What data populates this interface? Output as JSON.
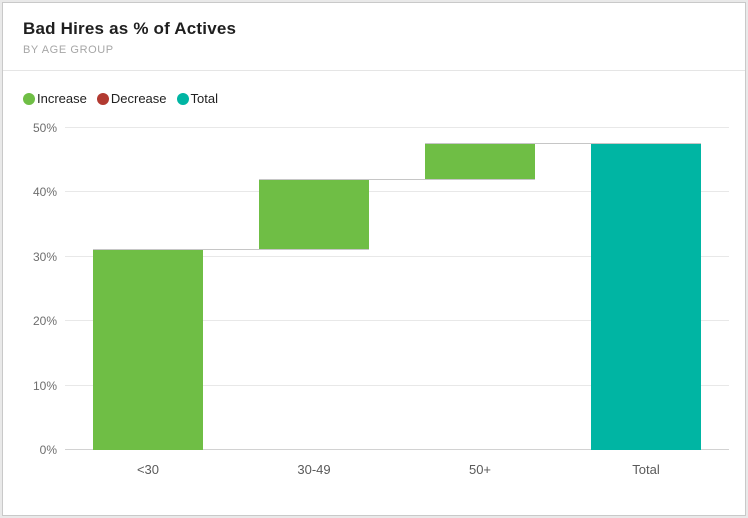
{
  "header": {
    "title": "Bad Hires as % of Actives",
    "subtitle": "BY AGE GROUP"
  },
  "chart_data": {
    "type": "waterfall",
    "title": "Bad Hires as % of Actives",
    "subtitle": "BY AGE GROUP",
    "categories": [
      "<30",
      "30-49",
      "50+",
      "Total"
    ],
    "bars": [
      {
        "category": "<30",
        "start": 0,
        "end": 31,
        "role": "increase"
      },
      {
        "category": "30-49",
        "start": 31,
        "end": 42,
        "role": "increase"
      },
      {
        "category": "50+",
        "start": 42,
        "end": 47.5,
        "role": "increase"
      },
      {
        "category": "Total",
        "start": 0,
        "end": 47.5,
        "role": "total"
      }
    ],
    "increments": [
      31,
      11,
      5.5
    ],
    "total": 47.5,
    "ylim": [
      0,
      50
    ],
    "yticks": [
      {
        "value": 0,
        "label": "0%"
      },
      {
        "value": 10,
        "label": "10%"
      },
      {
        "value": 20,
        "label": "20%"
      },
      {
        "value": 30,
        "label": "30%"
      },
      {
        "value": 40,
        "label": "40%"
      },
      {
        "value": 50,
        "label": "50%"
      }
    ],
    "grid": true,
    "legend_position": "top-left",
    "legend": [
      {
        "label": "Increase",
        "role": "increase"
      },
      {
        "label": "Decrease",
        "role": "decrease"
      },
      {
        "label": "Total",
        "role": "total"
      }
    ],
    "colors": {
      "increase": "#6FBE45",
      "decrease": "#B23A31",
      "total": "#00B5A3"
    }
  }
}
